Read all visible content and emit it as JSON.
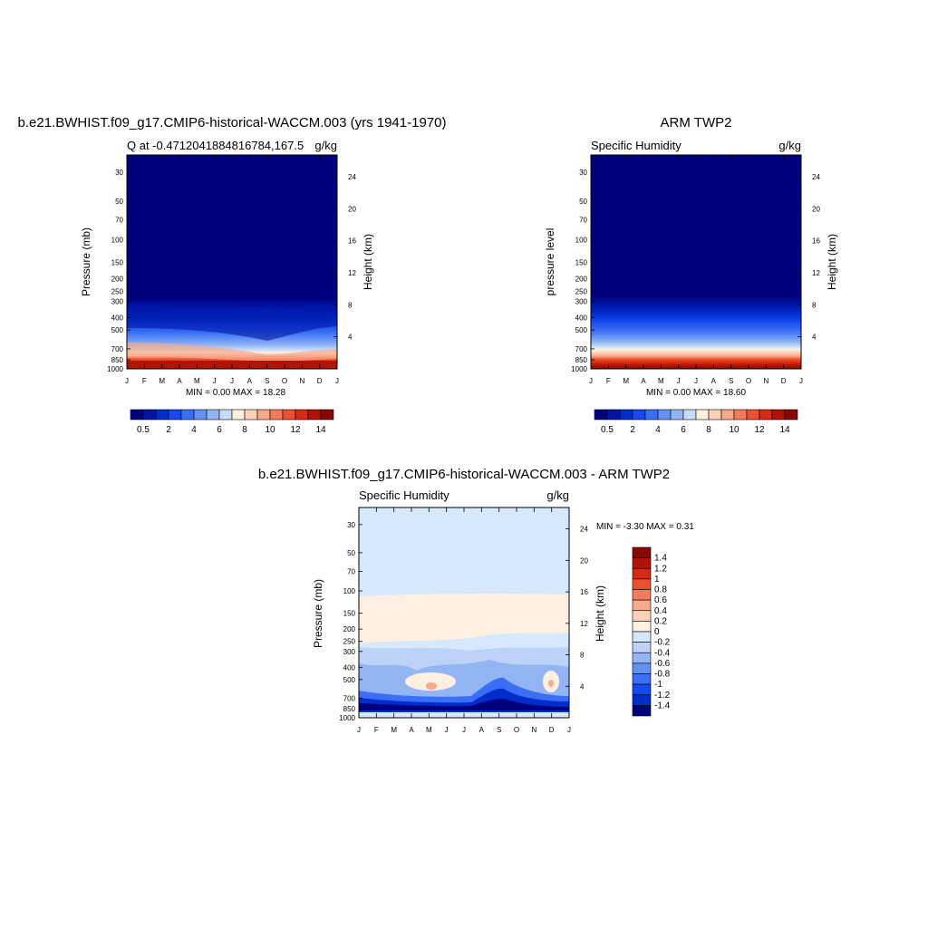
{
  "chart_data": [
    {
      "type": "heatmap",
      "id": "model",
      "title": "b.e21.BWHIST.f09_g17.CMIP6-historical-WACCM.003 (yrs 1941-1970)",
      "subtitle_left": "Q at -0.4712041884816784,167.5",
      "subtitle_right": "g/kg",
      "ylabel": "Pressure (mb)",
      "ylabel_right": "Height (km)",
      "x_ticks": [
        "J",
        "F",
        "M",
        "A",
        "M",
        "J",
        "J",
        "A",
        "S",
        "O",
        "N",
        "D",
        "J"
      ],
      "y_ticks": [
        "30",
        "50",
        "70",
        "100",
        "150",
        "200",
        "250",
        "300",
        "400",
        "500",
        "700",
        "850",
        "1000"
      ],
      "y_ticks_right": [
        "24",
        "20",
        "16",
        "12",
        "8",
        "4"
      ],
      "minmax_text": "MIN =   0.00 MAX =  18.28",
      "colorbar_labels": [
        "0.5",
        "2",
        "4",
        "6",
        "8",
        "10",
        "12",
        "14"
      ],
      "colorbar_orientation": "horizontal",
      "colors": [
        "#00007f",
        "#0015a4",
        "#002ccc",
        "#1649f0",
        "#3a6ef4",
        "#6392f4",
        "#94b5f4",
        "#c4dcf9",
        "#fdf0e0",
        "#fbd1b8",
        "#f7a98a",
        "#f47c5e",
        "#eb5131",
        "#d42b15",
        "#b01404",
        "#8a0601"
      ]
    },
    {
      "type": "heatmap",
      "id": "obs",
      "title": "ARM TWP2",
      "subtitle_left": "Specific Humidity",
      "subtitle_right": "g/kg",
      "ylabel": "pressure level",
      "ylabel_right": "Height (km)",
      "x_ticks": [
        "J",
        "F",
        "M",
        "A",
        "M",
        "J",
        "J",
        "A",
        "S",
        "O",
        "N",
        "D",
        "J"
      ],
      "y_ticks": [
        "30",
        "50",
        "70",
        "100",
        "150",
        "200",
        "250",
        "300",
        "400",
        "500",
        "700",
        "850",
        "1000"
      ],
      "y_ticks_right": [
        "24",
        "20",
        "16",
        "12",
        "8",
        "4"
      ],
      "minmax_text": "MIN =   0.00 MAX =  18.60",
      "colorbar_labels": [
        "0.5",
        "2",
        "4",
        "6",
        "8",
        "10",
        "12",
        "14"
      ],
      "colorbar_orientation": "horizontal"
    },
    {
      "type": "heatmap",
      "id": "diff",
      "title": "b.e21.BWHIST.f09_g17.CMIP6-historical-WACCM.003 - ARM TWP2",
      "subtitle_left": "Specific Humidity",
      "subtitle_right": "g/kg",
      "ylabel": "Pressure (mb)",
      "ylabel_right": "Height (km)",
      "x_ticks": [
        "J",
        "F",
        "M",
        "A",
        "M",
        "J",
        "J",
        "A",
        "S",
        "O",
        "N",
        "D",
        "J"
      ],
      "y_ticks": [
        "30",
        "50",
        "70",
        "100",
        "150",
        "200",
        "250",
        "300",
        "400",
        "500",
        "700",
        "850",
        "1000"
      ],
      "y_ticks_right": [
        "24",
        "20",
        "16",
        "12",
        "8",
        "4"
      ],
      "minmax_text": "MIN =  -3.30 MAX =   0.31",
      "colorbar_labels": [
        "1.4",
        "1.2",
        "1",
        "0.8",
        "0.6",
        "0.4",
        "0.2",
        "0",
        "-0.2",
        "-0.4",
        "-0.6",
        "-0.8",
        "-1",
        "-1.2",
        "-1.4"
      ],
      "colorbar_orientation": "vertical",
      "colors_top_to_bottom": [
        "#8a0601",
        "#b01404",
        "#d42b15",
        "#eb5131",
        "#f47c5e",
        "#f7a98a",
        "#fbd1b8",
        "#fdf0e0",
        "#d6e8fb",
        "#bcd2f7",
        "#94b5f4",
        "#6392f4",
        "#3a6ef4",
        "#1649f0",
        "#002ccc",
        "#00007f"
      ]
    }
  ]
}
